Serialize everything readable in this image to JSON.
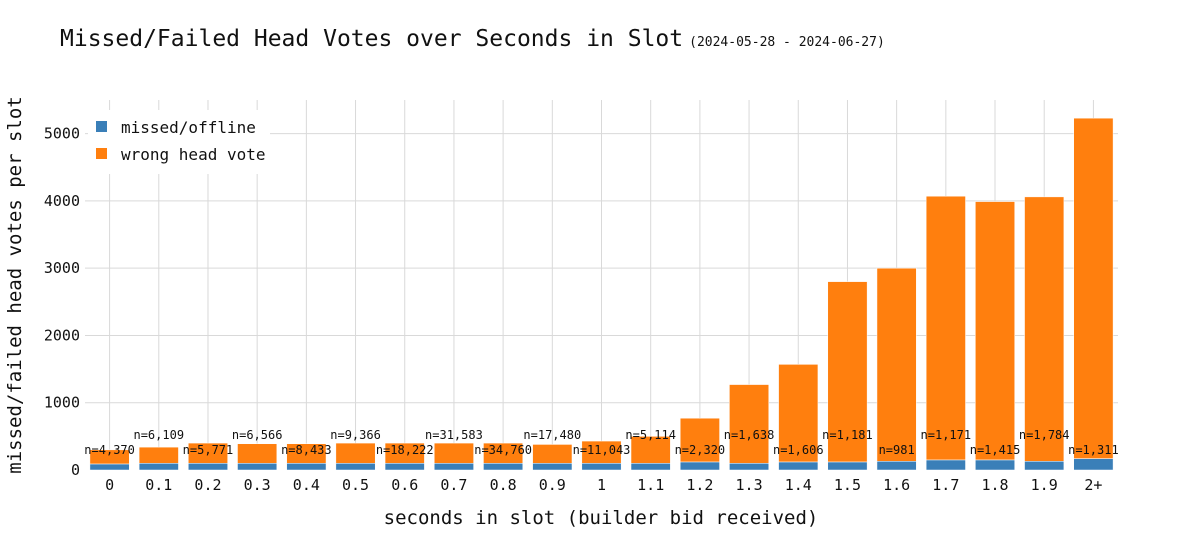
{
  "title": "Missed/Failed Head Votes over Seconds in Slot",
  "date_range": "(2024-05-28 - 2024-06-27)",
  "colors": {
    "missed": "#3a7fb8",
    "wrong": "#ff7f0e",
    "grid": "#d9d9d9"
  },
  "chart_data": {
    "type": "bar",
    "stacked": true,
    "title": "Missed/Failed Head Votes over Seconds in Slot",
    "xlabel": "seconds in slot (builder bid received)",
    "ylabel": "missed/failed head votes per slot",
    "ylim": [
      0,
      5500
    ],
    "yticks": [
      0,
      1000,
      2000,
      3000,
      4000,
      5000
    ],
    "legend": "top-left",
    "categories": [
      "0",
      "0.1",
      "0.2",
      "0.3",
      "0.4",
      "0.5",
      "0.6",
      "0.7",
      "0.8",
      "0.9",
      "1",
      "1.1",
      "1.2",
      "1.3",
      "1.4",
      "1.5",
      "1.6",
      "1.7",
      "1.8",
      "1.9",
      "2+"
    ],
    "series": [
      {
        "name": "missed/offline",
        "values": [
          90,
          100,
          100,
          100,
          100,
          100,
          100,
          100,
          100,
          100,
          100,
          100,
          120,
          100,
          120,
          120,
          130,
          150,
          150,
          130,
          170
        ]
      },
      {
        "name": "wrong head vote",
        "values": [
          210,
          240,
          300,
          290,
          290,
          300,
          300,
          300,
          300,
          280,
          330,
          400,
          650,
          1170,
          1450,
          2680,
          2870,
          3920,
          3840,
          3930,
          5060
        ]
      }
    ],
    "annotations": [
      "n=4,370",
      "n=6,109",
      "n=5,771",
      "n=6,566",
      "n=8,433",
      "n=9,366",
      "n=18,222",
      "n=31,583",
      "n=34,760",
      "n=17,480",
      "n=11,043",
      "n=5,114",
      "n=2,320",
      "n=1,638",
      "n=1,606",
      "n=1,181",
      "n=981",
      "n=1,171",
      "n=1,415",
      "n=1,784",
      "n=1,311"
    ],
    "annotation_rows": [
      0,
      1,
      0,
      1,
      0,
      1,
      0,
      1,
      0,
      1,
      0,
      1,
      0,
      1,
      0,
      1,
      0,
      1,
      0,
      1,
      0
    ]
  }
}
